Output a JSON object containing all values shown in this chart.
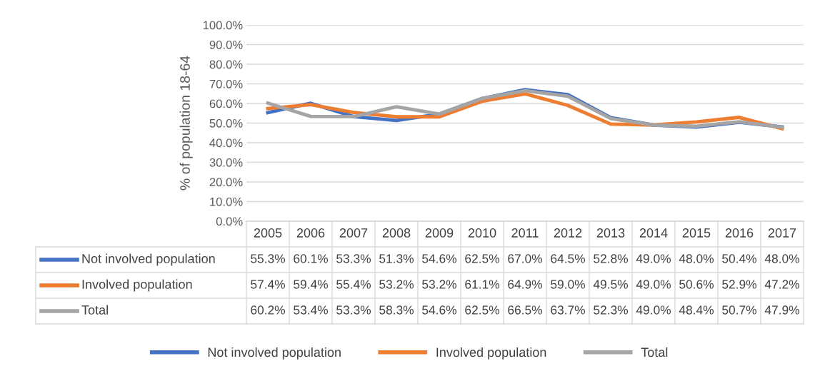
{
  "chart_data": {
    "type": "line",
    "ylabel": "% of population 18-64",
    "categories": [
      "2005",
      "2006",
      "2007",
      "2008",
      "2009",
      "2010",
      "2011",
      "2012",
      "2013",
      "2014",
      "2015",
      "2016",
      "2017"
    ],
    "series": [
      {
        "name": "Not involved population",
        "color": "#4472c4",
        "values": [
          55.3,
          60.1,
          53.3,
          51.3,
          54.6,
          62.5,
          67.0,
          64.5,
          52.8,
          49.0,
          48.0,
          50.4,
          48.0
        ],
        "value_labels": [
          "55.3%",
          "60.1%",
          "53.3%",
          "51.3%",
          "54.6%",
          "62.5%",
          "67.0%",
          "64.5%",
          "52.8%",
          "49.0%",
          "48.0%",
          "50.4%",
          "48.0%"
        ]
      },
      {
        "name": "Involved population",
        "color": "#ed7d31",
        "values": [
          57.4,
          59.4,
          55.4,
          53.2,
          53.2,
          61.1,
          64.9,
          59.0,
          49.5,
          49.0,
          50.6,
          52.9,
          47.2
        ],
        "value_labels": [
          "57.4%",
          "59.4%",
          "55.4%",
          "53.2%",
          "53.2%",
          "61.1%",
          "64.9%",
          "59.0%",
          "49.5%",
          "49.0%",
          "50.6%",
          "52.9%",
          "47.2%"
        ]
      },
      {
        "name": "Total",
        "color": "#a5a5a5",
        "values": [
          60.2,
          53.4,
          53.3,
          58.3,
          54.6,
          62.5,
          66.5,
          63.7,
          52.3,
          49.0,
          48.4,
          50.7,
          47.9
        ],
        "value_labels": [
          "60.2%",
          "53.4%",
          "53.3%",
          "58.3%",
          "54.6%",
          "62.5%",
          "66.5%",
          "63.7%",
          "52.3%",
          "49.0%",
          "48.4%",
          "50.7%",
          "47.9%"
        ]
      }
    ],
    "ylim": [
      0,
      100
    ],
    "yticks": [
      {
        "value": 0,
        "label": "0.0%"
      },
      {
        "value": 10,
        "label": "10.0%"
      },
      {
        "value": 20,
        "label": "20.0%"
      },
      {
        "value": 30,
        "label": "30.0%"
      },
      {
        "value": 40,
        "label": "40.0%"
      },
      {
        "value": 50,
        "label": "50.0%"
      },
      {
        "value": 60,
        "label": "60.0%"
      },
      {
        "value": 70,
        "label": "70.0%"
      },
      {
        "value": 80,
        "label": "80.0%"
      },
      {
        "value": 90,
        "label": "90.0%"
      },
      {
        "value": 100,
        "label": "100.0%"
      }
    ],
    "grid": "y",
    "legend": "bottom",
    "marker": "none",
    "line_style": "solid"
  }
}
